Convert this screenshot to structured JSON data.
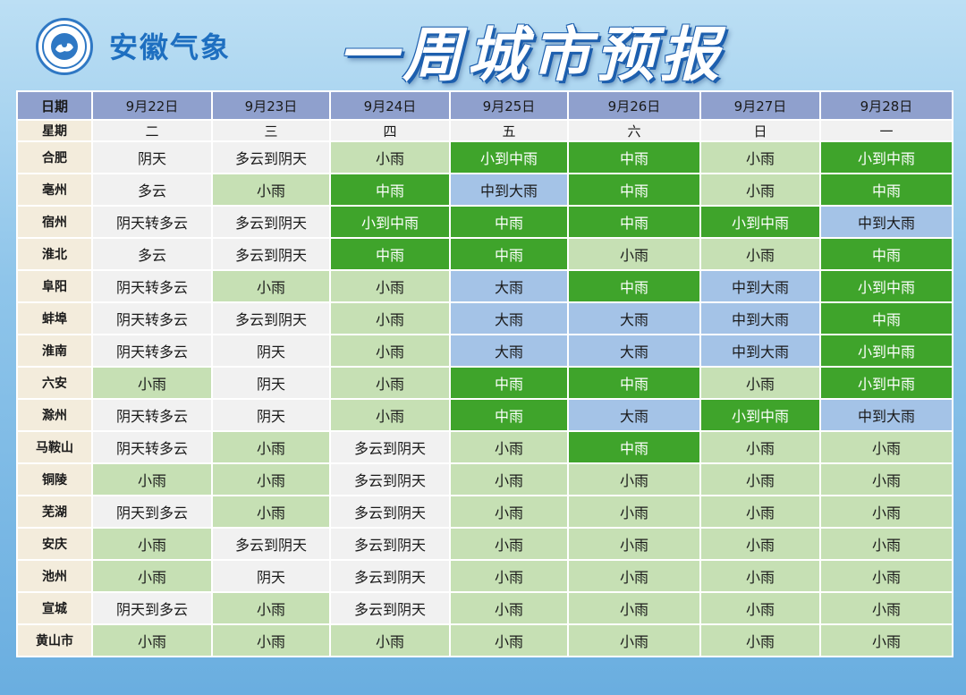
{
  "header": {
    "brand": "安徽气象",
    "title": "一周城市预报"
  },
  "colors": {
    "gray": "#f1f1f1",
    "light_green": "#c6e0b4",
    "green": "#3fa42b",
    "blue": "#a4c3e7"
  },
  "table": {
    "corner_date": "日期",
    "corner_week": "星期",
    "dates": [
      "9月22日",
      "9月23日",
      "9月24日",
      "9月25日",
      "9月26日",
      "9月27日",
      "9月28日"
    ],
    "weekdays": [
      "二",
      "三",
      "四",
      "五",
      "六",
      "日",
      "一"
    ],
    "rows": [
      {
        "city": "合肥",
        "cells": [
          {
            "text": "阴天",
            "c": "gray"
          },
          {
            "text": "多云到阴天",
            "c": "gray"
          },
          {
            "text": "小雨",
            "c": "light"
          },
          {
            "text": "小到中雨",
            "c": "green"
          },
          {
            "text": "中雨",
            "c": "green"
          },
          {
            "text": "小雨",
            "c": "light"
          },
          {
            "text": "小到中雨",
            "c": "green"
          }
        ]
      },
      {
        "city": "亳州",
        "cells": [
          {
            "text": "多云",
            "c": "gray"
          },
          {
            "text": "小雨",
            "c": "light"
          },
          {
            "text": "中雨",
            "c": "green"
          },
          {
            "text": "中到大雨",
            "c": "blue"
          },
          {
            "text": "中雨",
            "c": "green"
          },
          {
            "text": "小雨",
            "c": "light"
          },
          {
            "text": "中雨",
            "c": "green"
          }
        ]
      },
      {
        "city": "宿州",
        "cells": [
          {
            "text": "阴天转多云",
            "c": "gray"
          },
          {
            "text": "多云到阴天",
            "c": "gray"
          },
          {
            "text": "小到中雨",
            "c": "green"
          },
          {
            "text": "中雨",
            "c": "green"
          },
          {
            "text": "中雨",
            "c": "green"
          },
          {
            "text": "小到中雨",
            "c": "green"
          },
          {
            "text": "中到大雨",
            "c": "blue"
          }
        ]
      },
      {
        "city": "淮北",
        "cells": [
          {
            "text": "多云",
            "c": "gray"
          },
          {
            "text": "多云到阴天",
            "c": "gray"
          },
          {
            "text": "中雨",
            "c": "green"
          },
          {
            "text": "中雨",
            "c": "green"
          },
          {
            "text": "小雨",
            "c": "light"
          },
          {
            "text": "小雨",
            "c": "light"
          },
          {
            "text": "中雨",
            "c": "green"
          }
        ]
      },
      {
        "city": "阜阳",
        "cells": [
          {
            "text": "阴天转多云",
            "c": "gray"
          },
          {
            "text": "小雨",
            "c": "light"
          },
          {
            "text": "小雨",
            "c": "light"
          },
          {
            "text": "大雨",
            "c": "blue"
          },
          {
            "text": "中雨",
            "c": "green"
          },
          {
            "text": "中到大雨",
            "c": "blue"
          },
          {
            "text": "小到中雨",
            "c": "green"
          }
        ]
      },
      {
        "city": "蚌埠",
        "cells": [
          {
            "text": "阴天转多云",
            "c": "gray"
          },
          {
            "text": "多云到阴天",
            "c": "gray"
          },
          {
            "text": "小雨",
            "c": "light"
          },
          {
            "text": "大雨",
            "c": "blue"
          },
          {
            "text": "大雨",
            "c": "blue"
          },
          {
            "text": "中到大雨",
            "c": "blue"
          },
          {
            "text": "中雨",
            "c": "green"
          }
        ]
      },
      {
        "city": "淮南",
        "cells": [
          {
            "text": "阴天转多云",
            "c": "gray"
          },
          {
            "text": "阴天",
            "c": "gray"
          },
          {
            "text": "小雨",
            "c": "light"
          },
          {
            "text": "大雨",
            "c": "blue"
          },
          {
            "text": "大雨",
            "c": "blue"
          },
          {
            "text": "中到大雨",
            "c": "blue"
          },
          {
            "text": "小到中雨",
            "c": "green"
          }
        ]
      },
      {
        "city": "六安",
        "cells": [
          {
            "text": "小雨",
            "c": "light"
          },
          {
            "text": "阴天",
            "c": "gray"
          },
          {
            "text": "小雨",
            "c": "light"
          },
          {
            "text": "中雨",
            "c": "green"
          },
          {
            "text": "中雨",
            "c": "green"
          },
          {
            "text": "小雨",
            "c": "light"
          },
          {
            "text": "小到中雨",
            "c": "green"
          }
        ]
      },
      {
        "city": "滁州",
        "cells": [
          {
            "text": "阴天转多云",
            "c": "gray"
          },
          {
            "text": "阴天",
            "c": "gray"
          },
          {
            "text": "小雨",
            "c": "light"
          },
          {
            "text": "中雨",
            "c": "green"
          },
          {
            "text": "大雨",
            "c": "blue"
          },
          {
            "text": "小到中雨",
            "c": "green"
          },
          {
            "text": "中到大雨",
            "c": "blue"
          }
        ]
      },
      {
        "city": "马鞍山",
        "cells": [
          {
            "text": "阴天转多云",
            "c": "gray"
          },
          {
            "text": "小雨",
            "c": "light"
          },
          {
            "text": "多云到阴天",
            "c": "gray"
          },
          {
            "text": "小雨",
            "c": "light"
          },
          {
            "text": "中雨",
            "c": "green"
          },
          {
            "text": "小雨",
            "c": "light"
          },
          {
            "text": "小雨",
            "c": "light"
          }
        ]
      },
      {
        "city": "铜陵",
        "cells": [
          {
            "text": "小雨",
            "c": "light"
          },
          {
            "text": "小雨",
            "c": "light"
          },
          {
            "text": "多云到阴天",
            "c": "gray"
          },
          {
            "text": "小雨",
            "c": "light"
          },
          {
            "text": "小雨",
            "c": "light"
          },
          {
            "text": "小雨",
            "c": "light"
          },
          {
            "text": "小雨",
            "c": "light"
          }
        ]
      },
      {
        "city": "芜湖",
        "cells": [
          {
            "text": "阴天到多云",
            "c": "gray"
          },
          {
            "text": "小雨",
            "c": "light"
          },
          {
            "text": "多云到阴天",
            "c": "gray"
          },
          {
            "text": "小雨",
            "c": "light"
          },
          {
            "text": "小雨",
            "c": "light"
          },
          {
            "text": "小雨",
            "c": "light"
          },
          {
            "text": "小雨",
            "c": "light"
          }
        ]
      },
      {
        "city": "安庆",
        "cells": [
          {
            "text": "小雨",
            "c": "light"
          },
          {
            "text": "多云到阴天",
            "c": "gray"
          },
          {
            "text": "多云到阴天",
            "c": "gray"
          },
          {
            "text": "小雨",
            "c": "light"
          },
          {
            "text": "小雨",
            "c": "light"
          },
          {
            "text": "小雨",
            "c": "light"
          },
          {
            "text": "小雨",
            "c": "light"
          }
        ]
      },
      {
        "city": "池州",
        "cells": [
          {
            "text": "小雨",
            "c": "light"
          },
          {
            "text": "阴天",
            "c": "gray"
          },
          {
            "text": "多云到阴天",
            "c": "gray"
          },
          {
            "text": "小雨",
            "c": "light"
          },
          {
            "text": "小雨",
            "c": "light"
          },
          {
            "text": "小雨",
            "c": "light"
          },
          {
            "text": "小雨",
            "c": "light"
          }
        ]
      },
      {
        "city": "宣城",
        "cells": [
          {
            "text": "阴天到多云",
            "c": "gray"
          },
          {
            "text": "小雨",
            "c": "light"
          },
          {
            "text": "多云到阴天",
            "c": "gray"
          },
          {
            "text": "小雨",
            "c": "light"
          },
          {
            "text": "小雨",
            "c": "light"
          },
          {
            "text": "小雨",
            "c": "light"
          },
          {
            "text": "小雨",
            "c": "light"
          }
        ]
      },
      {
        "city": "黄山市",
        "cells": [
          {
            "text": "小雨",
            "c": "light"
          },
          {
            "text": "小雨",
            "c": "light"
          },
          {
            "text": "小雨",
            "c": "light"
          },
          {
            "text": "小雨",
            "c": "light"
          },
          {
            "text": "小雨",
            "c": "light"
          },
          {
            "text": "小雨",
            "c": "light"
          },
          {
            "text": "小雨",
            "c": "light"
          }
        ]
      }
    ]
  }
}
